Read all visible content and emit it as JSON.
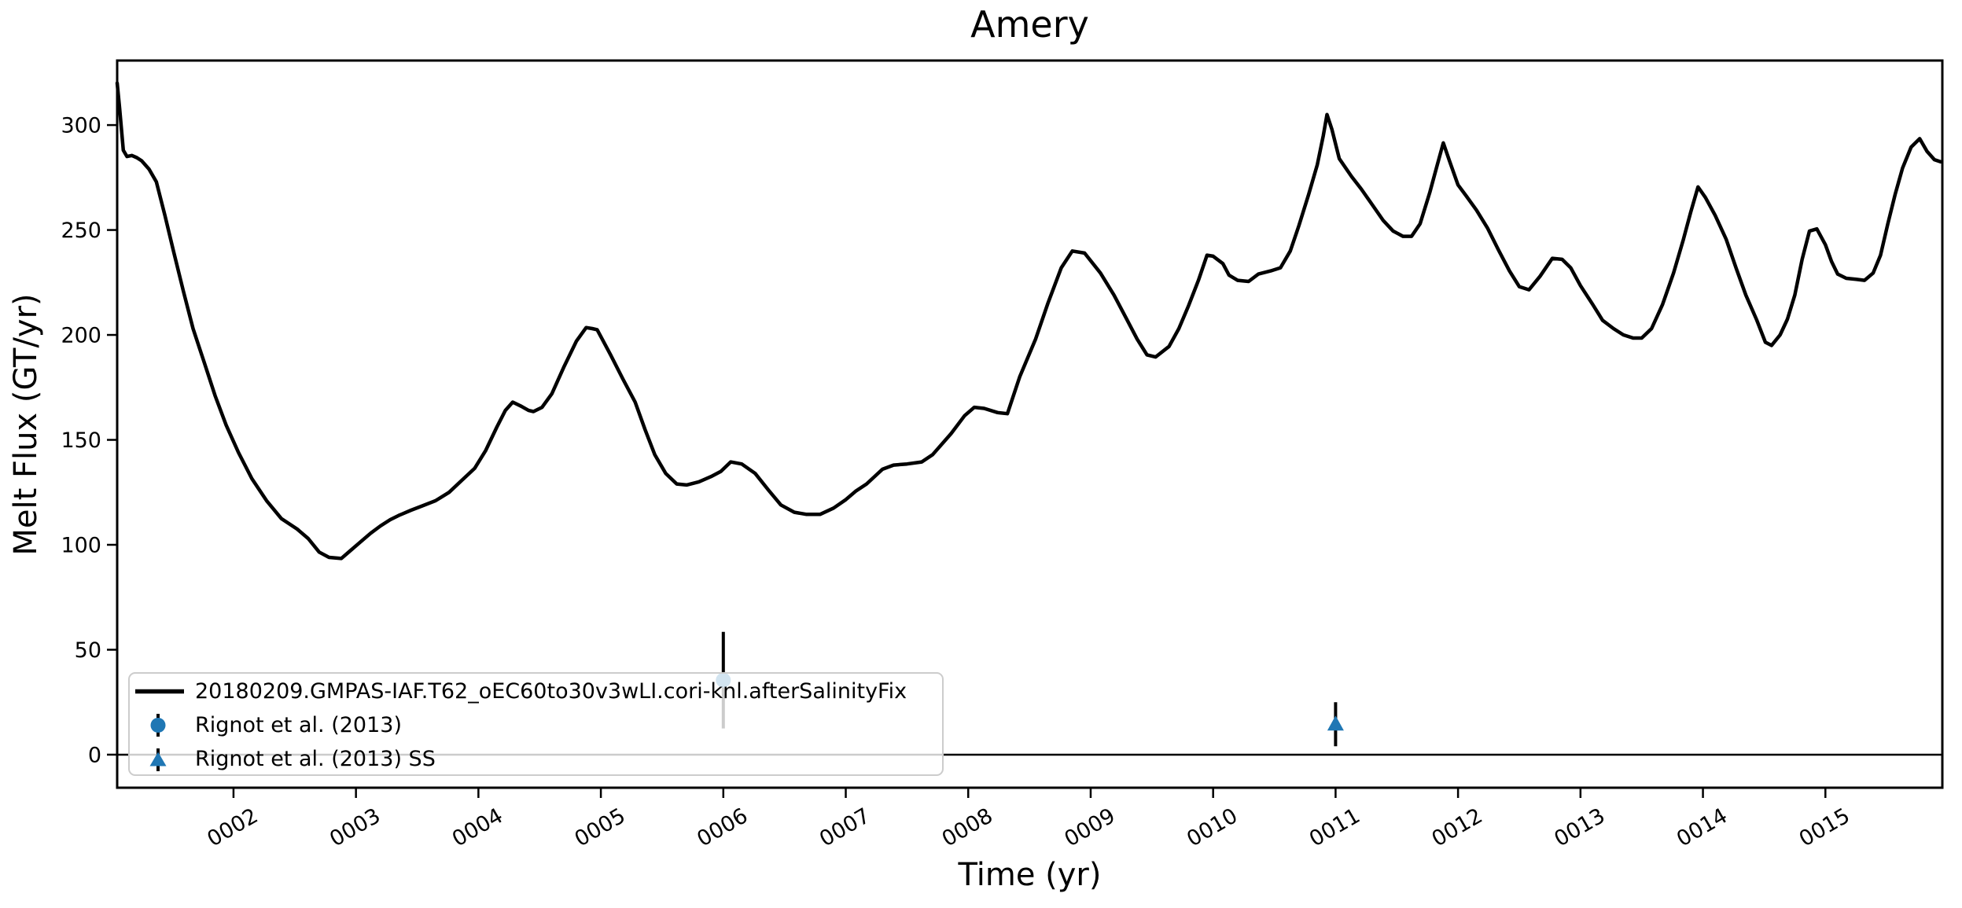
{
  "title": "Amery",
  "axes": {
    "xlabel": "Time (yr)",
    "ylabel": "Melt Flux (GT/yr)",
    "xlim": [
      1.05,
      15.955
    ],
    "ylim": [
      -15.75,
      330.75
    ],
    "xticks": {
      "values": [
        2,
        3,
        4,
        5,
        6,
        7,
        8,
        9,
        10,
        11,
        12,
        13,
        14,
        15
      ],
      "labels": [
        "0002",
        "0003",
        "0004",
        "0005",
        "0006",
        "0007",
        "0008",
        "0009",
        "0010",
        "0011",
        "0012",
        "0013",
        "0014",
        "0015"
      ],
      "rotation_deg": -30
    },
    "yticks": {
      "values": [
        0,
        50,
        100,
        150,
        200,
        250,
        300
      ],
      "labels": [
        "0",
        "50",
        "100",
        "150",
        "200",
        "250",
        "300"
      ]
    },
    "zero_line": 0,
    "frame_color": "#000000"
  },
  "chart_data": {
    "type": "line",
    "xlabel": "Time (yr)",
    "ylabel": "Melt Flux (GT/yr)",
    "title": "Amery",
    "series": [
      {
        "name": "20180209.GMPAS-IAF.T62_oEC60to30v3wLI.cori-knl.afterSalinityFix",
        "kind": "line",
        "color": "#000000",
        "linewidth": 4.5,
        "points": [
          [
            1.05,
            320
          ],
          [
            1.07,
            308
          ],
          [
            1.1,
            288
          ],
          [
            1.13,
            285
          ],
          [
            1.17,
            285.5
          ],
          [
            1.21,
            284.5
          ],
          [
            1.25,
            283
          ],
          [
            1.31,
            279
          ],
          [
            1.37,
            273
          ],
          [
            1.44,
            257
          ],
          [
            1.51,
            240
          ],
          [
            1.59,
            221
          ],
          [
            1.67,
            203
          ],
          [
            1.76,
            187
          ],
          [
            1.85,
            171
          ],
          [
            1.94,
            157
          ],
          [
            2.04,
            144
          ],
          [
            2.15,
            131.5
          ],
          [
            2.27,
            121
          ],
          [
            2.39,
            112.5
          ],
          [
            2.52,
            107.5
          ],
          [
            2.61,
            103
          ],
          [
            2.7,
            96.5
          ],
          [
            2.78,
            94
          ],
          [
            2.88,
            93.5
          ],
          [
            2.95,
            97
          ],
          [
            3.03,
            101
          ],
          [
            3.12,
            105.5
          ],
          [
            3.2,
            109
          ],
          [
            3.28,
            112
          ],
          [
            3.35,
            114
          ],
          [
            3.45,
            116.5
          ],
          [
            3.54,
            118.5
          ],
          [
            3.65,
            121
          ],
          [
            3.76,
            125
          ],
          [
            3.86,
            130.5
          ],
          [
            3.97,
            136.5
          ],
          [
            4.06,
            145
          ],
          [
            4.15,
            156
          ],
          [
            4.22,
            164
          ],
          [
            4.28,
            168
          ],
          [
            4.35,
            166
          ],
          [
            4.41,
            164
          ],
          [
            4.45,
            163.5
          ],
          [
            4.52,
            165.5
          ],
          [
            4.6,
            172
          ],
          [
            4.7,
            185
          ],
          [
            4.8,
            197
          ],
          [
            4.88,
            203.5
          ],
          [
            4.93,
            203
          ],
          [
            4.97,
            202.5
          ],
          [
            5.08,
            190.5
          ],
          [
            5.18,
            179
          ],
          [
            5.28,
            168
          ],
          [
            5.36,
            155
          ],
          [
            5.44,
            143
          ],
          [
            5.53,
            134
          ],
          [
            5.62,
            129
          ],
          [
            5.7,
            128.5
          ],
          [
            5.8,
            130
          ],
          [
            5.9,
            132.5
          ],
          [
            5.98,
            135
          ],
          [
            6.06,
            139.5
          ],
          [
            6.15,
            138.5
          ],
          [
            6.26,
            134
          ],
          [
            6.37,
            126
          ],
          [
            6.47,
            119
          ],
          [
            6.58,
            115.5
          ],
          [
            6.68,
            114.5
          ],
          [
            6.79,
            114.5
          ],
          [
            6.9,
            117.5
          ],
          [
            7.0,
            121.5
          ],
          [
            7.08,
            125.5
          ],
          [
            7.17,
            129
          ],
          [
            7.3,
            136
          ],
          [
            7.39,
            138
          ],
          [
            7.5,
            138.5
          ],
          [
            7.62,
            139.5
          ],
          [
            7.71,
            143
          ],
          [
            7.86,
            153
          ],
          [
            7.97,
            161.5
          ],
          [
            8.05,
            165.5
          ],
          [
            8.13,
            165
          ],
          [
            8.24,
            163
          ],
          [
            8.32,
            162.5
          ],
          [
            8.42,
            180
          ],
          [
            8.55,
            198
          ],
          [
            8.65,
            215
          ],
          [
            8.76,
            232
          ],
          [
            8.85,
            240
          ],
          [
            8.95,
            239
          ],
          [
            9.08,
            229.5
          ],
          [
            9.19,
            219
          ],
          [
            9.29,
            208
          ],
          [
            9.38,
            198
          ],
          [
            9.46,
            190.5
          ],
          [
            9.53,
            189.5
          ],
          [
            9.64,
            194.5
          ],
          [
            9.72,
            203
          ],
          [
            9.8,
            214
          ],
          [
            9.88,
            226
          ],
          [
            9.95,
            238
          ],
          [
            10.0,
            237.5
          ],
          [
            10.08,
            234
          ],
          [
            10.13,
            228.5
          ],
          [
            10.2,
            226
          ],
          [
            10.29,
            225.5
          ],
          [
            10.37,
            229
          ],
          [
            10.47,
            230.5
          ],
          [
            10.55,
            232
          ],
          [
            10.63,
            240
          ],
          [
            10.7,
            252
          ],
          [
            10.78,
            267
          ],
          [
            10.85,
            281
          ],
          [
            10.9,
            295
          ],
          [
            10.93,
            305
          ],
          [
            10.97,
            298
          ],
          [
            11.03,
            284
          ],
          [
            11.13,
            275.5
          ],
          [
            11.21,
            269.5
          ],
          [
            11.3,
            262
          ],
          [
            11.39,
            254.5
          ],
          [
            11.47,
            249.5
          ],
          [
            11.55,
            247
          ],
          [
            11.62,
            247
          ],
          [
            11.69,
            253
          ],
          [
            11.77,
            268
          ],
          [
            11.83,
            281
          ],
          [
            11.88,
            291.5
          ],
          [
            11.93,
            283
          ],
          [
            12.0,
            271.5
          ],
          [
            12.07,
            266
          ],
          [
            12.15,
            259.5
          ],
          [
            12.24,
            251
          ],
          [
            12.33,
            240.5
          ],
          [
            12.42,
            230.5
          ],
          [
            12.5,
            223
          ],
          [
            12.58,
            221.5
          ],
          [
            12.67,
            228
          ],
          [
            12.77,
            236.5
          ],
          [
            12.85,
            236
          ],
          [
            12.92,
            232
          ],
          [
            13.0,
            223.5
          ],
          [
            13.1,
            214.5
          ],
          [
            13.18,
            207
          ],
          [
            13.27,
            203
          ],
          [
            13.35,
            200
          ],
          [
            13.43,
            198.5
          ],
          [
            13.5,
            198.5
          ],
          [
            13.58,
            203
          ],
          [
            13.67,
            214.5
          ],
          [
            13.76,
            229.5
          ],
          [
            13.84,
            245.5
          ],
          [
            13.9,
            258.5
          ],
          [
            13.96,
            270.5
          ],
          [
            14.02,
            265.5
          ],
          [
            14.1,
            257
          ],
          [
            14.19,
            245.5
          ],
          [
            14.27,
            232
          ],
          [
            14.35,
            219
          ],
          [
            14.44,
            207
          ],
          [
            14.51,
            196.5
          ],
          [
            14.56,
            195
          ],
          [
            14.63,
            200
          ],
          [
            14.69,
            207.5
          ],
          [
            14.75,
            219
          ],
          [
            14.81,
            236
          ],
          [
            14.87,
            249.5
          ],
          [
            14.93,
            250.5
          ],
          [
            15.0,
            243
          ],
          [
            15.05,
            235
          ],
          [
            15.1,
            229
          ],
          [
            15.17,
            227
          ],
          [
            15.25,
            226.5
          ],
          [
            15.32,
            226
          ],
          [
            15.39,
            229.5
          ],
          [
            15.45,
            238
          ],
          [
            15.51,
            253
          ],
          [
            15.57,
            267
          ],
          [
            15.63,
            279.5
          ],
          [
            15.7,
            289.5
          ],
          [
            15.77,
            293.5
          ],
          [
            15.83,
            287.5
          ],
          [
            15.89,
            283.5
          ],
          [
            15.94,
            282.5
          ]
        ]
      },
      {
        "name": "Rignot et al. (2013)",
        "kind": "errorbar",
        "marker": "circle",
        "color": "#1f77b4",
        "ecolor": "#000000",
        "x": 6.0,
        "y": 35.5,
        "yerr": 23
      },
      {
        "name": "Rignot et al. (2013) SS",
        "kind": "errorbar",
        "marker": "triangle",
        "color": "#1f77b4",
        "ecolor": "#000000",
        "x": 11.0,
        "y": 14.5,
        "yerr": 10.5
      }
    ]
  },
  "legend": {
    "position": "lower left",
    "border_color": "#cccccc"
  }
}
